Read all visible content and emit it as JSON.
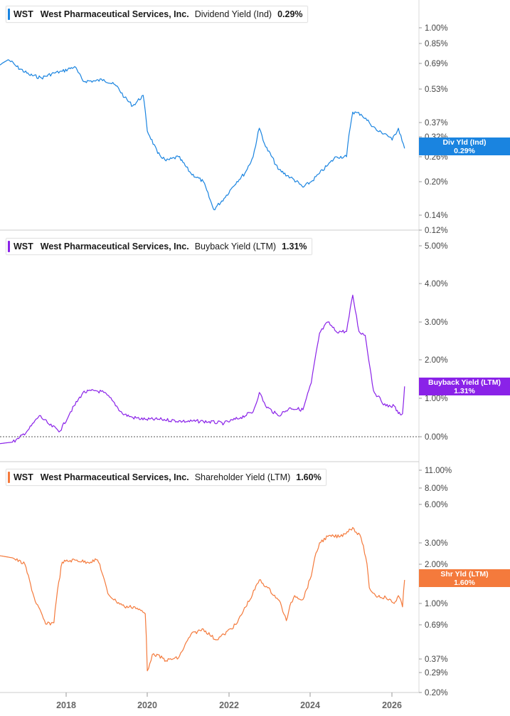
{
  "panels": [
    {
      "ticker": "WST",
      "company": "West Pharmaceutical Services, Inc.",
      "metric": "Dividend Yield (Ind)",
      "value": "0.29%",
      "badge_line1": "Div Yld (Ind)",
      "badge_line2": "0.29%",
      "color": "#1a84e0",
      "ticks": [
        {
          "label": "1.00%",
          "v": 1.0
        },
        {
          "label": "0.85%",
          "v": 0.85
        },
        {
          "label": "0.69%",
          "v": 0.69
        },
        {
          "label": "0.53%",
          "v": 0.53
        },
        {
          "label": "0.37%",
          "v": 0.37
        },
        {
          "label": "0.32%",
          "v": 0.32
        },
        {
          "label": "0.26%",
          "v": 0.26
        },
        {
          "label": "0.20%",
          "v": 0.2
        },
        {
          "label": "0.14%",
          "v": 0.14
        },
        {
          "label": "0.12%",
          "v": 0.12
        }
      ]
    },
    {
      "ticker": "WST",
      "company": "West Pharmaceutical Services, Inc.",
      "metric": "Buyback Yield (LTM)",
      "value": "1.31%",
      "badge_line1": "Buyback Yield (LTM)",
      "badge_line2": "1.31%",
      "color": "#8a22e8",
      "ticks": [
        {
          "label": "5.00%",
          "v": 5.0
        },
        {
          "label": "4.00%",
          "v": 4.0
        },
        {
          "label": "3.00%",
          "v": 3.0
        },
        {
          "label": "2.00%",
          "v": 2.0
        },
        {
          "label": "1.00%",
          "v": 1.0
        },
        {
          "label": "0.00%",
          "v": 0.0
        }
      ]
    },
    {
      "ticker": "WST",
      "company": "West Pharmaceutical Services, Inc.",
      "metric": "Shareholder Yield (LTM)",
      "value": "1.60%",
      "badge_line1": "Shr Yld (LTM)",
      "badge_line2": "1.60%",
      "color": "#f47a3c",
      "ticks": [
        {
          "label": "11.00%",
          "v": 11.0
        },
        {
          "label": "8.00%",
          "v": 8.0
        },
        {
          "label": "6.00%",
          "v": 6.0
        },
        {
          "label": "3.00%",
          "v": 3.0
        },
        {
          "label": "2.00%",
          "v": 2.0
        },
        {
          "label": "1.00%",
          "v": 1.0
        },
        {
          "label": "0.69%",
          "v": 0.69
        },
        {
          "label": "0.37%",
          "v": 0.37
        },
        {
          "label": "0.29%",
          "v": 0.29
        },
        {
          "label": "0.20%",
          "v": 0.2
        }
      ]
    }
  ],
  "x_ticks": [
    "2018",
    "2020",
    "2022",
    "2024",
    "2026"
  ],
  "chart_data": [
    {
      "type": "line",
      "series": [
        {
          "name": "Dividend Yield (Ind)"
        }
      ],
      "yscale": "log",
      "ylim": [
        0.12,
        1.0
      ],
      "x": [
        2016.6,
        2016.8,
        2017.0,
        2017.3,
        2017.6,
        2017.9,
        2018.1,
        2018.4,
        2018.6,
        2018.9,
        2019.1,
        2019.4,
        2019.6,
        2019.8,
        2020.05,
        2020.15,
        2020.4,
        2020.6,
        2020.9,
        2021.2,
        2021.5,
        2021.75,
        2022.0,
        2022.2,
        2022.5,
        2022.7,
        2022.85,
        2023.0,
        2023.3,
        2023.6,
        2023.9,
        2024.1,
        2024.3,
        2024.5,
        2024.7,
        2024.95,
        2025.1,
        2025.3,
        2025.5,
        2025.7,
        2025.9,
        2026.05,
        2026.2,
        2026.35
      ],
      "y": [
        0.68,
        0.72,
        0.67,
        0.62,
        0.6,
        0.63,
        0.64,
        0.67,
        0.58,
        0.58,
        0.59,
        0.55,
        0.49,
        0.45,
        0.5,
        0.34,
        0.27,
        0.25,
        0.26,
        0.22,
        0.2,
        0.15,
        0.17,
        0.19,
        0.22,
        0.26,
        0.35,
        0.29,
        0.23,
        0.21,
        0.19,
        0.2,
        0.22,
        0.24,
        0.26,
        0.26,
        0.42,
        0.41,
        0.37,
        0.34,
        0.33,
        0.31,
        0.35,
        0.285
      ]
    },
    {
      "type": "line",
      "series": [
        {
          "name": "Buyback Yield (LTM)"
        }
      ],
      "ylim": [
        0.0,
        5.0
      ],
      "x": [
        2016.6,
        2016.9,
        2017.05,
        2017.3,
        2017.55,
        2017.8,
        2018.05,
        2018.3,
        2018.6,
        2018.9,
        2019.1,
        2019.3,
        2019.55,
        2019.8,
        2020.1,
        2020.5,
        2021.0,
        2021.5,
        2022.0,
        2022.4,
        2022.7,
        2022.85,
        2023.0,
        2023.3,
        2023.6,
        2023.9,
        2024.1,
        2024.3,
        2024.5,
        2024.7,
        2024.95,
        2025.1,
        2025.25,
        2025.4,
        2025.6,
        2025.7,
        2025.9,
        2026.1,
        2026.2,
        2026.3,
        2026.35
      ],
      "y": [
        -0.18,
        -0.14,
        -0.05,
        0.2,
        0.55,
        0.3,
        0.15,
        0.65,
        1.15,
        1.2,
        1.15,
        0.95,
        0.6,
        0.5,
        0.45,
        0.45,
        0.4,
        0.4,
        0.35,
        0.5,
        0.65,
        1.15,
        0.8,
        0.55,
        0.75,
        0.7,
        1.4,
        2.7,
        3.0,
        2.75,
        2.75,
        3.7,
        2.75,
        2.65,
        1.2,
        1.05,
        0.8,
        0.8,
        0.6,
        0.6,
        1.31
      ]
    },
    {
      "type": "line",
      "series": [
        {
          "name": "Shareholder Yield (LTM)"
        }
      ],
      "yscale": "log",
      "ylim": [
        0.2,
        11.0
      ],
      "x": [
        2016.6,
        2016.9,
        2017.2,
        2017.45,
        2017.7,
        2017.9,
        2018.1,
        2018.4,
        2018.7,
        2018.95,
        2019.2,
        2019.4,
        2019.6,
        2019.85,
        2020.1,
        2020.15,
        2020.3,
        2020.6,
        2020.9,
        2021.2,
        2021.5,
        2021.8,
        2022.0,
        2022.3,
        2022.6,
        2022.85,
        2023.05,
        2023.3,
        2023.5,
        2023.7,
        2023.9,
        2024.1,
        2024.3,
        2024.5,
        2024.8,
        2025.1,
        2025.3,
        2025.5,
        2025.65,
        2025.9,
        2026.1,
        2026.2,
        2026.3,
        2026.35
      ],
      "y": [
        2.4,
        2.3,
        2.0,
        1.05,
        0.7,
        0.72,
        2.1,
        2.2,
        2.1,
        2.2,
        1.25,
        1.05,
        0.95,
        0.95,
        0.85,
        0.3,
        0.42,
        0.36,
        0.38,
        0.6,
        0.65,
        0.55,
        0.6,
        0.7,
        1.05,
        1.6,
        1.4,
        1.1,
        0.75,
        1.2,
        1.1,
        1.7,
        3.0,
        3.5,
        3.5,
        4.2,
        3.4,
        1.4,
        1.2,
        1.15,
        1.0,
        1.2,
        0.95,
        1.6
      ]
    }
  ]
}
